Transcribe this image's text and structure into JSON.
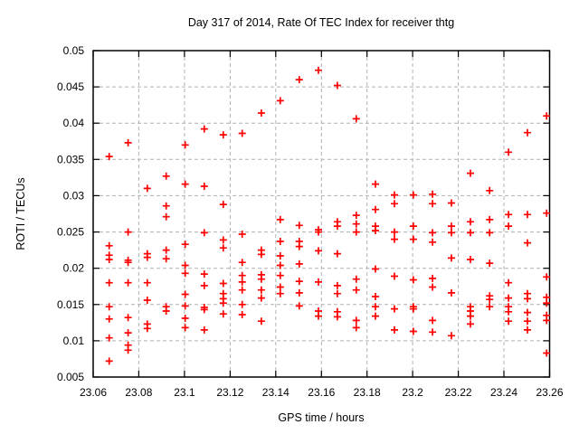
{
  "chart_data": {
    "type": "scatter",
    "title": "Day 317 of 2014, Rate Of TEC Index for receiver thtg",
    "xlabel": "GPS time / hours",
    "ylabel": "ROTI / TECUs",
    "xlim": [
      23.06,
      23.26
    ],
    "ylim": [
      0.005,
      0.05
    ],
    "grid": true,
    "legend": "none",
    "marker": {
      "shape": "plus",
      "color": "#ff0000"
    },
    "xtick_values": [
      23.06,
      23.08,
      23.1,
      23.12,
      23.14,
      23.16,
      23.18,
      23.2,
      23.22,
      23.24,
      23.26
    ],
    "xtick_labels": [
      "23.06",
      "23.08",
      "23.1",
      "23.12",
      "23.14",
      "23.16",
      "23.18",
      "23.2",
      "23.22",
      "23.24",
      "23.26"
    ],
    "ytick_values": [
      0.005,
      0.01,
      0.015,
      0.02,
      0.025,
      0.03,
      0.035,
      0.04,
      0.045,
      0.05
    ],
    "ytick_labels": [
      "0.005",
      "0.01",
      "0.015",
      "0.02",
      "0.025",
      "0.03",
      "0.035",
      "0.04",
      "0.045",
      "0.05"
    ],
    "series": [
      {
        "name": "ROTI",
        "columns": [
          {
            "t": 23.067,
            "v": [
              0.0354,
              0.0231,
              0.0218,
              0.0212,
              0.018,
              0.0147,
              0.013,
              0.0104,
              0.0072
            ]
          },
          {
            "t": 23.0753,
            "v": [
              0.0373,
              0.025,
              0.0211,
              0.0208,
              0.018,
              0.0132,
              0.0111,
              0.0094,
              0.0087
            ]
          },
          {
            "t": 23.0837,
            "v": [
              0.031,
              0.022,
              0.0215,
              0.018,
              0.0156,
              0.0123,
              0.0117
            ]
          },
          {
            "t": 23.092,
            "v": [
              0.0327,
              0.0286,
              0.0271,
              0.0225,
              0.0213,
              0.0147,
              0.0141
            ]
          },
          {
            "t": 23.1003,
            "v": [
              0.037,
              0.0316,
              0.0233,
              0.0204,
              0.0193,
              0.0164,
              0.0148,
              0.0131,
              0.0118
            ]
          },
          {
            "t": 23.1087,
            "v": [
              0.0392,
              0.0313,
              0.0249,
              0.0192,
              0.0176,
              0.0146,
              0.0143,
              0.0115
            ]
          },
          {
            "t": 23.117,
            "v": [
              0.0384,
              0.0288,
              0.0239,
              0.0228,
              0.0179,
              0.0165,
              0.0158,
              0.0152,
              0.0137
            ]
          },
          {
            "t": 23.1253,
            "v": [
              0.0386,
              0.0247,
              0.0208,
              0.019,
              0.0181,
              0.017,
              0.015,
              0.0136
            ]
          },
          {
            "t": 23.1337,
            "v": [
              0.0414,
              0.0225,
              0.0219,
              0.0191,
              0.0185,
              0.017,
              0.0159,
              0.0127
            ]
          },
          {
            "t": 23.142,
            "v": [
              0.0431,
              0.0267,
              0.0237,
              0.0217,
              0.0204,
              0.019,
              0.0174,
              0.0165
            ]
          },
          {
            "t": 23.1503,
            "v": [
              0.046,
              0.0259,
              0.0237,
              0.023,
              0.0206,
              0.0182,
              0.0166,
              0.0148
            ]
          },
          {
            "t": 23.1587,
            "v": [
              0.0473,
              0.0253,
              0.025,
              0.0224,
              0.0181,
              0.0141,
              0.0134
            ]
          },
          {
            "t": 23.167,
            "v": [
              0.0452,
              0.0264,
              0.0258,
              0.022,
              0.0176,
              0.0165,
              0.014,
              0.0133
            ]
          },
          {
            "t": 23.1753,
            "v": [
              0.0406,
              0.0273,
              0.0261,
              0.025,
              0.0185,
              0.017,
              0.0128,
              0.0118
            ]
          },
          {
            "t": 23.1837,
            "v": [
              0.0316,
              0.0281,
              0.0258,
              0.0252,
              0.0199,
              0.0161,
              0.0147,
              0.0134
            ]
          },
          {
            "t": 23.192,
            "v": [
              0.0301,
              0.0289,
              0.025,
              0.024,
              0.0189,
              0.0144,
              0.0115
            ]
          },
          {
            "t": 23.2003,
            "v": [
              0.0301,
              0.0258,
              0.024,
              0.0184,
              0.0147,
              0.0144,
              0.0113
            ]
          },
          {
            "t": 23.2087,
            "v": [
              0.0302,
              0.0289,
              0.0249,
              0.0236,
              0.0186,
              0.0174,
              0.0128,
              0.0112
            ]
          },
          {
            "t": 23.217,
            "v": [
              0.029,
              0.0258,
              0.0249,
              0.0214,
              0.0166,
              0.0107
            ]
          },
          {
            "t": 23.2253,
            "v": [
              0.0331,
              0.0264,
              0.0249,
              0.0212,
              0.0147,
              0.0141,
              0.0134,
              0.0123
            ]
          },
          {
            "t": 23.2337,
            "v": [
              0.0307,
              0.0267,
              0.0249,
              0.0207,
              0.0162,
              0.0157,
              0.0147
            ]
          },
          {
            "t": 23.242,
            "v": [
              0.036,
              0.0274,
              0.0258,
              0.018,
              0.0159,
              0.0147,
              0.014,
              0.0127
            ]
          },
          {
            "t": 23.2503,
            "v": [
              0.0387,
              0.0274,
              0.0235,
              0.0165,
              0.0158,
              0.0139,
              0.0127,
              0.0115
            ]
          },
          {
            "t": 23.2587,
            "v": [
              0.041,
              0.0276,
              0.0188,
              0.016,
              0.0152,
              0.0135,
              0.0128,
              0.0083
            ]
          }
        ]
      }
    ]
  }
}
